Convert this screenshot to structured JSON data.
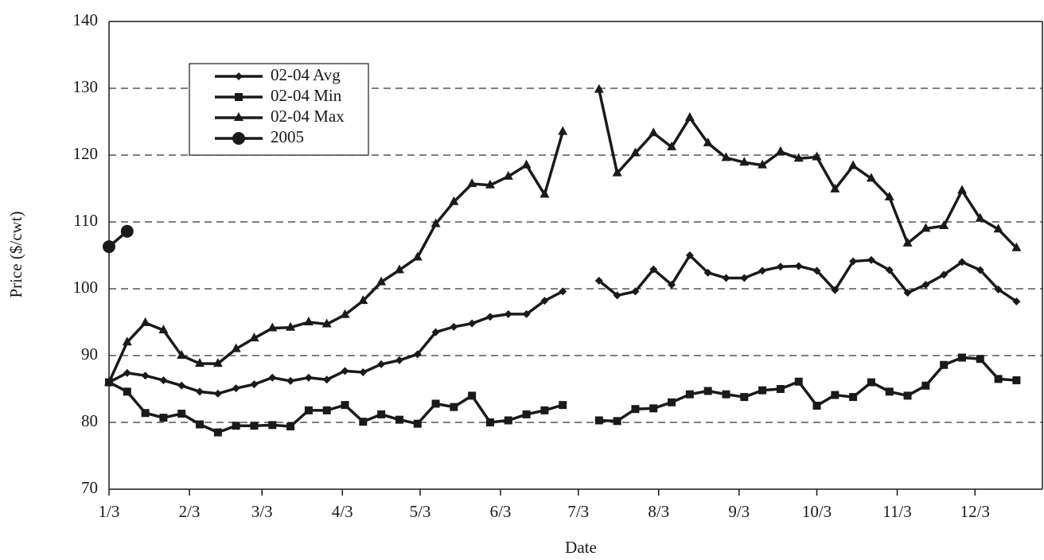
{
  "chart_data": {
    "type": "line",
    "x_label": "Date",
    "y_label": "Price ($/cwt)",
    "x": [
      3,
      10,
      17,
      24,
      31,
      38,
      45,
      52,
      59,
      66,
      73,
      80,
      87,
      94,
      101,
      108,
      115,
      122,
      129,
      136,
      143,
      150,
      157,
      164,
      171,
      178,
      185,
      192,
      199,
      206,
      213,
      220,
      227,
      234,
      241,
      248,
      255,
      262,
      269,
      276,
      283,
      290,
      297,
      304,
      311,
      318,
      325,
      332,
      339,
      346,
      353
    ],
    "xlim": [
      3,
      363
    ],
    "xticks": [
      {
        "value": 3,
        "label": "1/3"
      },
      {
        "value": 34,
        "label": "2/3"
      },
      {
        "value": 62,
        "label": "3/3"
      },
      {
        "value": 93,
        "label": "4/3"
      },
      {
        "value": 123,
        "label": "5/3"
      },
      {
        "value": 154,
        "label": "6/3"
      },
      {
        "value": 184,
        "label": "7/3"
      },
      {
        "value": 215,
        "label": "8/3"
      },
      {
        "value": 246,
        "label": "9/3"
      },
      {
        "value": 276,
        "label": "10/3"
      },
      {
        "value": 307,
        "label": "11/3"
      },
      {
        "value": 337,
        "label": "12/3"
      }
    ],
    "ylim": [
      70,
      140
    ],
    "yticks": [
      70,
      80,
      90,
      100,
      110,
      120,
      130,
      140
    ],
    "grid": true,
    "legend": "upper-left",
    "series": [
      {
        "name": "02-04 Avg",
        "color": "#1a1a1a",
        "marker": "diamond",
        "values": [
          86,
          87.4,
          87,
          86.3,
          85.5,
          84.6,
          84.3,
          85.1,
          85.7,
          86.7,
          86.2,
          86.7,
          86.4,
          87.7,
          87.5,
          88.7,
          89.3,
          90.2,
          93.5,
          94.3,
          94.8,
          95.8,
          96.2,
          96.2,
          98.2,
          99.6,
          null,
          101.2,
          99,
          99.6,
          102.9,
          100.6,
          105,
          102.4,
          101.6,
          101.6,
          102.7,
          103.3,
          103.4,
          102.7,
          99.8,
          104.1,
          104.3,
          102.8,
          99.4,
          100.6,
          102.1,
          104,
          102.8,
          99.9,
          98.1
        ]
      },
      {
        "name": "02-04 Min",
        "color": "#1a1a1a",
        "marker": "square",
        "values": [
          86,
          84.6,
          81.4,
          80.7,
          81.3,
          79.7,
          78.5,
          79.5,
          79.5,
          79.6,
          79.4,
          81.8,
          81.8,
          82.6,
          80.1,
          81.2,
          80.4,
          79.8,
          82.8,
          82.3,
          84,
          80,
          80.3,
          81.2,
          81.8,
          82.6,
          null,
          80.3,
          80.2,
          82,
          82.1,
          83,
          84.2,
          84.7,
          84.2,
          83.8,
          84.8,
          85,
          86.1,
          82.5,
          84.1,
          83.8,
          86,
          84.6,
          84,
          85.5,
          88.6,
          89.7,
          89.5,
          86.5,
          86.3
        ]
      },
      {
        "name": "02-04 Max",
        "color": "#1a1a1a",
        "marker": "triangle",
        "values": [
          86,
          92,
          94.9,
          93.8,
          90,
          88.8,
          88.8,
          91,
          92.6,
          94.1,
          94.2,
          95,
          94.7,
          96.1,
          98.2,
          101,
          102.8,
          104.7,
          109.7,
          113,
          115.7,
          115.5,
          116.8,
          118.5,
          114.1,
          123.5,
          null,
          129.8,
          117.3,
          120.3,
          123.3,
          121.2,
          125.6,
          121.8,
          119.6,
          118.9,
          118.5,
          120.5,
          119.5,
          119.7,
          114.9,
          118.4,
          116.5,
          113.7,
          106.8,
          109,
          109.4,
          114.7,
          110.5,
          108.9,
          106.1
        ]
      },
      {
        "name": "2005",
        "color": "#1a1a1a",
        "marker": "circle",
        "values": [
          106.3,
          108.6,
          null,
          null,
          null,
          null,
          null,
          null,
          null,
          null,
          null,
          null,
          null,
          null,
          null,
          null,
          null,
          null,
          null,
          null,
          null,
          null,
          null,
          null,
          null,
          null,
          null,
          null,
          null,
          null,
          null,
          null,
          null,
          null,
          null,
          null,
          null,
          null,
          null,
          null,
          null,
          null,
          null,
          null,
          null,
          null,
          null,
          null,
          null,
          null,
          null
        ]
      }
    ]
  }
}
